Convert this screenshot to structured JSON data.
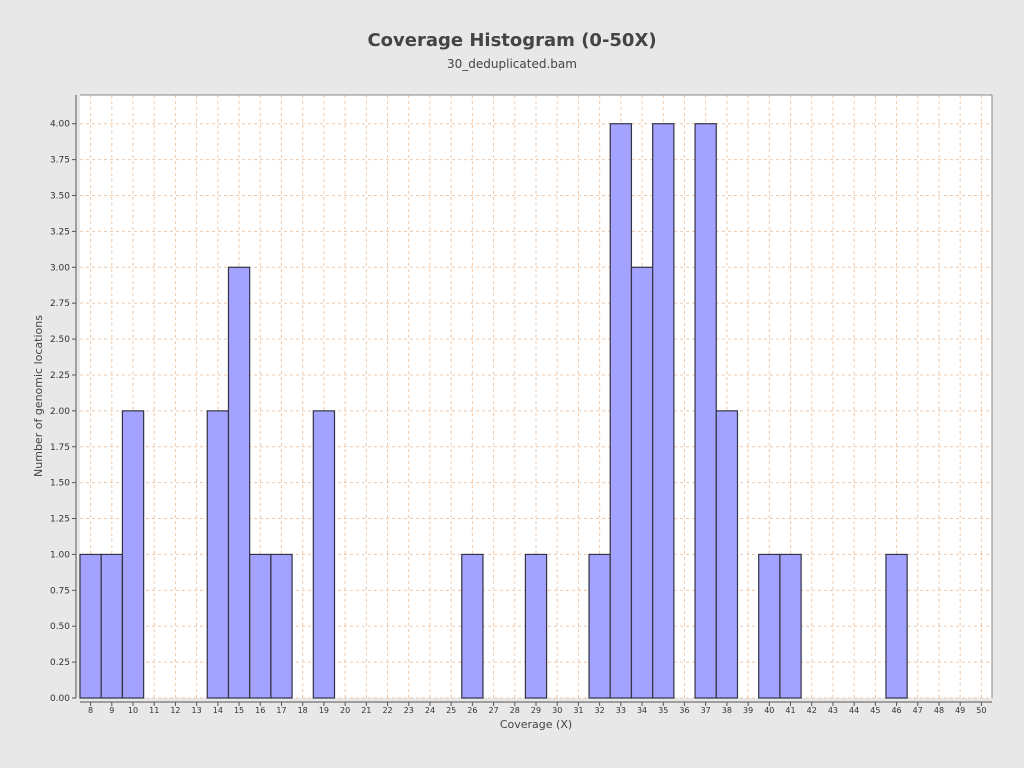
{
  "chart_data": {
    "type": "bar",
    "title": "Coverage Histogram (0-50X)",
    "subtitle": "30_deduplicated.bam",
    "xlabel": "Coverage (X)",
    "ylabel": "Number of genomic locations",
    "xlim": [
      8,
      50
    ],
    "ylim": [
      0,
      4.2
    ],
    "x_ticks": [
      8,
      9,
      10,
      11,
      12,
      13,
      14,
      15,
      16,
      17,
      18,
      19,
      20,
      21,
      22,
      23,
      24,
      25,
      26,
      27,
      28,
      29,
      30,
      31,
      32,
      33,
      34,
      35,
      36,
      37,
      38,
      39,
      40,
      41,
      42,
      43,
      44,
      45,
      46,
      47,
      48,
      49,
      50
    ],
    "y_ticks": [
      "0.00",
      "0.25",
      "0.50",
      "0.75",
      "1.00",
      "1.25",
      "1.50",
      "1.75",
      "2.00",
      "2.25",
      "2.50",
      "2.75",
      "3.00",
      "3.25",
      "3.50",
      "3.75",
      "4.00"
    ],
    "bars": [
      {
        "x": 8,
        "y": 1
      },
      {
        "x": 9,
        "y": 1
      },
      {
        "x": 10,
        "y": 2
      },
      {
        "x": 14,
        "y": 2
      },
      {
        "x": 15,
        "y": 3
      },
      {
        "x": 16,
        "y": 1
      },
      {
        "x": 17,
        "y": 1
      },
      {
        "x": 19,
        "y": 2
      },
      {
        "x": 26,
        "y": 1
      },
      {
        "x": 29,
        "y": 1
      },
      {
        "x": 32,
        "y": 1
      },
      {
        "x": 33,
        "y": 4
      },
      {
        "x": 34,
        "y": 3
      },
      {
        "x": 35,
        "y": 4
      },
      {
        "x": 37,
        "y": 4
      },
      {
        "x": 38,
        "y": 2
      },
      {
        "x": 40,
        "y": 1
      },
      {
        "x": 41,
        "y": 1
      },
      {
        "x": 46,
        "y": 1
      }
    ],
    "grid": true,
    "colors": {
      "bar_fill": "#a3a3ff",
      "bar_stroke": "#333344",
      "grid": "#f0c8a8",
      "background": "#ffffff"
    }
  }
}
